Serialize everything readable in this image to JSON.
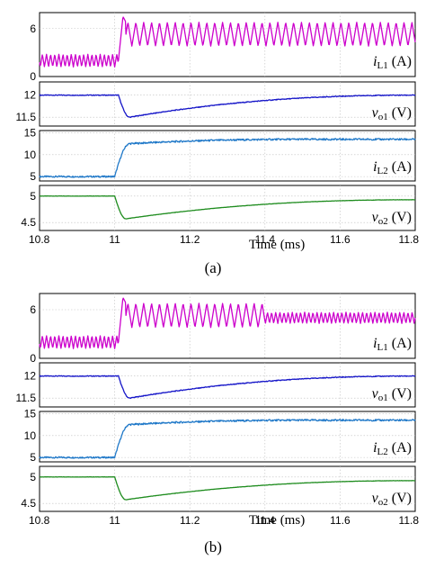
{
  "figure": {
    "xaxis": {
      "label": "Time (ms)",
      "ticks": [
        "10.8",
        "11",
        "11.2",
        "11.4",
        "11.6",
        "11.8"
      ],
      "range": [
        10.8,
        11.8
      ]
    },
    "subfigures": [
      {
        "label": "(a)"
      },
      {
        "label": "(b)"
      }
    ]
  },
  "chart_data": [
    {
      "subfigure": "(a)",
      "type": "line",
      "x_unit": "ms",
      "xlim": [
        10.8,
        11.8
      ],
      "panels": [
        {
          "signal": "iL1",
          "label_main": "i",
          "label_sub": "L1",
          "label_unit": " (A)",
          "color": "#cc00cc",
          "ylim": [
            0,
            8
          ],
          "yticks": [
            "6",
            "0"
          ],
          "pre_step": {
            "x": [
              10.8,
              11.01
            ],
            "mean": 2.0,
            "ripple_pp": 1.6,
            "ripple_period_ms": 0.011
          },
          "transient": {
            "x": [
              11.01,
              11.03
            ],
            "peak": 7.5
          },
          "post_step": {
            "x": [
              11.03,
              11.8
            ],
            "mean": 5.3,
            "ripple_pp": 3.0,
            "ripple_period_ms": 0.021
          }
        },
        {
          "signal": "vo1",
          "label_main": "v",
          "label_sub": "o1",
          "label_unit": " (V)",
          "color": "#1515c8",
          "ylim": [
            11.3,
            12.3
          ],
          "yticks": [
            "12",
            "11.5"
          ],
          "pre_step": {
            "x": [
              10.8,
              11.01
            ],
            "mean": 12.0
          },
          "transient": {
            "x": [
              11.01,
              11.04
            ],
            "min": 11.5
          },
          "recovery": {
            "x": [
              11.04,
              11.8
            ],
            "end": 12.0
          }
        },
        {
          "signal": "iL2",
          "label_main": "i",
          "label_sub": "L2",
          "label_unit": " (A)",
          "color": "#1f78c8",
          "ylim": [
            4,
            15.5
          ],
          "yticks": [
            "15",
            "10",
            "5"
          ],
          "pre_step": {
            "x": [
              10.8,
              11.0
            ],
            "mean": 5.0
          },
          "transient": {
            "x": [
              11.0,
              11.04
            ],
            "end": 12.5
          },
          "post_step": {
            "x": [
              11.04,
              11.8
            ],
            "mean": 13.5
          }
        },
        {
          "signal": "vo2",
          "label_main": "v",
          "label_sub": "o2",
          "label_unit": " (V)",
          "color": "#1e8c1e",
          "ylim": [
            4.35,
            5.2
          ],
          "yticks": [
            "5",
            "4.5"
          ],
          "pre_step": {
            "x": [
              10.8,
              11.0
            ],
            "mean": 5.0
          },
          "transient": {
            "x": [
              11.0,
              11.03
            ],
            "min": 4.57
          },
          "recovery": {
            "x": [
              11.03,
              11.8
            ],
            "end": 4.93
          }
        }
      ]
    },
    {
      "subfigure": "(b)",
      "type": "line",
      "x_unit": "ms",
      "xlim": [
        10.8,
        11.8
      ],
      "panels": [
        {
          "signal": "iL1",
          "label_main": "i",
          "label_sub": "L1",
          "label_unit": " (A)",
          "color": "#cc00cc",
          "ylim": [
            0,
            8
          ],
          "yticks": [
            "6",
            "0"
          ],
          "pre_step": {
            "x": [
              10.8,
              11.01
            ],
            "mean": 2.0,
            "ripple_pp": 1.6,
            "ripple_period_ms": 0.011
          },
          "transient": {
            "x": [
              11.01,
              11.03
            ],
            "peak": 7.5
          },
          "post_step": {
            "x": [
              11.03,
              11.4
            ],
            "mean": 5.3,
            "ripple_pp": 3.0,
            "ripple_period_ms": 0.021
          },
          "post_step_2": {
            "x": [
              11.4,
              11.8
            ],
            "mean": 5.0,
            "ripple_pp": 1.4,
            "ripple_period_ms": 0.011
          }
        },
        {
          "signal": "vo1",
          "label_main": "v",
          "label_sub": "o1",
          "label_unit": " (V)",
          "color": "#1515c8",
          "ylim": [
            11.3,
            12.3
          ],
          "yticks": [
            "12",
            "11.5"
          ],
          "pre_step": {
            "x": [
              10.8,
              11.01
            ],
            "mean": 12.0
          },
          "transient": {
            "x": [
              11.01,
              11.04
            ],
            "min": 11.5
          },
          "recovery": {
            "x": [
              11.04,
              11.8
            ],
            "end": 12.0
          }
        },
        {
          "signal": "iL2",
          "label_main": "i",
          "label_sub": "L2",
          "label_unit": " (A)",
          "color": "#1f78c8",
          "ylim": [
            4,
            15.5
          ],
          "yticks": [
            "15",
            "10",
            "5"
          ],
          "pre_step": {
            "x": [
              10.8,
              11.0
            ],
            "mean": 5.0
          },
          "transient": {
            "x": [
              11.0,
              11.04
            ],
            "end": 12.5
          },
          "post_step": {
            "x": [
              11.04,
              11.8
            ],
            "mean": 13.5
          }
        },
        {
          "signal": "vo2",
          "label_main": "v",
          "label_sub": "o2",
          "label_unit": " (V)",
          "color": "#1e8c1e",
          "ylim": [
            4.35,
            5.2
          ],
          "yticks": [
            "5",
            "4.5"
          ],
          "pre_step": {
            "x": [
              10.8,
              11.0
            ],
            "mean": 5.0
          },
          "transient": {
            "x": [
              11.0,
              11.03
            ],
            "min": 4.57
          },
          "recovery": {
            "x": [
              11.03,
              11.8
            ],
            "end": 4.93
          }
        }
      ]
    }
  ]
}
